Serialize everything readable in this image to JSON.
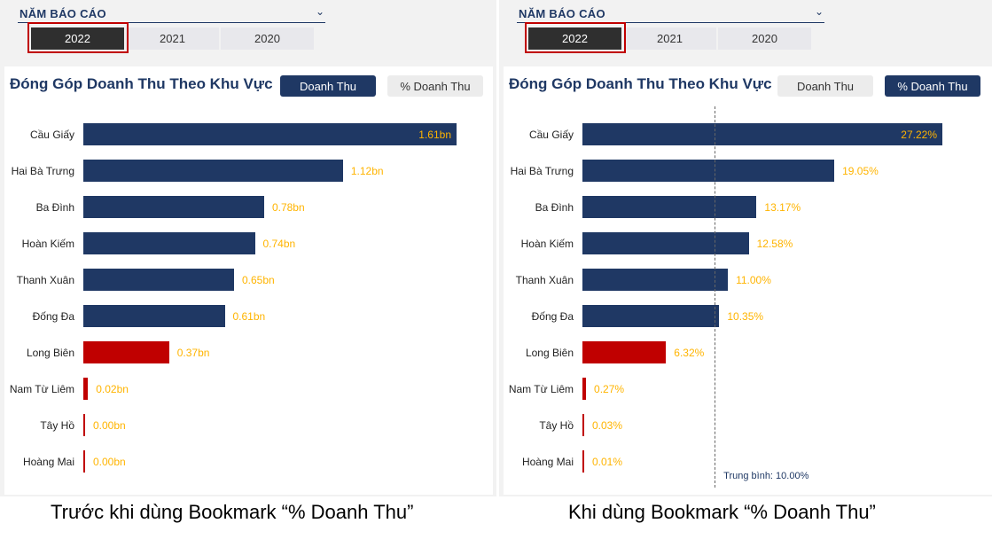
{
  "left_panel": {
    "slicer": {
      "title": "NĂM BÁO CÁO",
      "years": [
        "2022",
        "2021",
        "2020"
      ],
      "selected": "2022"
    },
    "card": {
      "title": "Đóng Góp Doanh Thu Theo Khu Vực",
      "buttons": {
        "revenue": "Doanh Thu",
        "percent": "% Doanh Thu",
        "active": "revenue"
      }
    },
    "chart_data": {
      "type": "bar",
      "orientation": "horizontal",
      "categories": [
        "Cầu Giấy",
        "Hai Bà Trưng",
        "Ba Đình",
        "Hoàn Kiếm",
        "Thanh Xuân",
        "Đống Đa",
        "Long Biên",
        "Nam Từ Liêm",
        "Tây Hồ",
        "Hoàng Mai"
      ],
      "values": [
        1.61,
        1.12,
        0.78,
        0.74,
        0.65,
        0.61,
        0.37,
        0.02,
        0.0,
        0.0
      ],
      "labels": [
        "1.61bn",
        "1.12bn",
        "0.78bn",
        "0.74bn",
        "0.65bn",
        "0.61bn",
        "0.37bn",
        "0.02bn",
        "0.00bn",
        "0.00bn"
      ],
      "bar_colors": [
        "#1f3864",
        "#1f3864",
        "#1f3864",
        "#1f3864",
        "#1f3864",
        "#1f3864",
        "#c00000",
        "#c00000",
        "#c00000",
        "#c00000"
      ],
      "xlim": [
        0,
        1.61
      ]
    }
  },
  "right_panel": {
    "slicer": {
      "title": "NĂM BÁO CÁO",
      "years": [
        "2022",
        "2021",
        "2020"
      ],
      "selected": "2022"
    },
    "card": {
      "title": "Đóng Góp Doanh Thu Theo Khu Vực",
      "buttons": {
        "revenue": "Doanh Thu",
        "percent": "% Doanh Thu",
        "active": "percent"
      }
    },
    "chart_data": {
      "type": "bar",
      "orientation": "horizontal",
      "categories": [
        "Cầu Giấy",
        "Hai Bà Trưng",
        "Ba Đình",
        "Hoàn Kiếm",
        "Thanh Xuân",
        "Đống Đa",
        "Long Biên",
        "Nam Từ Liêm",
        "Tây Hồ",
        "Hoàng Mai"
      ],
      "values": [
        27.22,
        19.05,
        13.17,
        12.58,
        11.0,
        10.35,
        6.32,
        0.27,
        0.03,
        0.01
      ],
      "labels": [
        "27.22%",
        "19.05%",
        "13.17%",
        "12.58%",
        "11.00%",
        "10.35%",
        "6.32%",
        "0.27%",
        "0.03%",
        "0.01%"
      ],
      "bar_colors": [
        "#1f3864",
        "#1f3864",
        "#1f3864",
        "#1f3864",
        "#1f3864",
        "#1f3864",
        "#c00000",
        "#c00000",
        "#c00000",
        "#c00000"
      ],
      "xlim": [
        0,
        27.22
      ],
      "average": {
        "value": 10.0,
        "label": "Trung bình: 10.00%"
      }
    }
  },
  "captions": {
    "left": "Trước khi dùng Bookmark “% Doanh Thu”",
    "right": "Khi dùng Bookmark “% Doanh Thu”"
  }
}
